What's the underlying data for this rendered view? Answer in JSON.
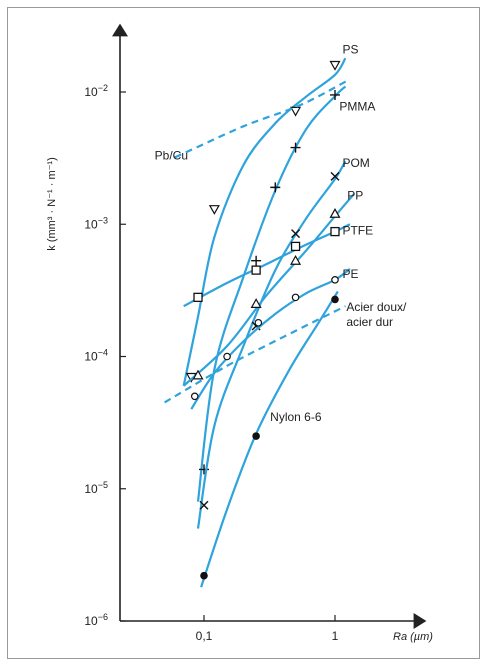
{
  "chart_data": {
    "type": "line",
    "xscale": "log",
    "yscale": "log",
    "xlim": [
      0.03,
      2.2
    ],
    "ylim": [
      1e-06,
      0.04
    ],
    "grid": false,
    "ylabel": "k (mm³ · N⁻¹ · m⁻¹)",
    "xlabel": "Ra (µm)",
    "y_ticks": [
      {
        "value": 1e-06,
        "base": "10",
        "exp": "−6"
      },
      {
        "value": 1e-05,
        "base": "10",
        "exp": "−5"
      },
      {
        "value": 0.0001,
        "base": "10",
        "exp": "−4"
      },
      {
        "value": 0.001,
        "base": "10",
        "exp": "−3"
      },
      {
        "value": 0.01,
        "base": "10",
        "exp": "−2"
      }
    ],
    "x_ticks": [
      {
        "value": 0.1,
        "label": "0,1"
      },
      {
        "value": 1,
        "label": "1"
      }
    ],
    "color": "#2ea3dc",
    "series": [
      {
        "name": "PS",
        "marker": "triangle-down",
        "dashed": false,
        "points": [
          [
            0.08,
            7e-05
          ],
          [
            0.12,
            0.0013
          ],
          [
            0.5,
            0.0072
          ],
          [
            1.0,
            0.016
          ]
        ],
        "curve": [
          [
            0.07,
            6e-05
          ],
          [
            0.09,
            0.0002
          ],
          [
            0.12,
            0.0008
          ],
          [
            0.2,
            0.0028
          ],
          [
            0.35,
            0.0058
          ],
          [
            0.6,
            0.0092
          ],
          [
            1.0,
            0.0135
          ],
          [
            1.2,
            0.018
          ]
        ],
        "label_at": [
          1.14,
          0.021
        ]
      },
      {
        "name": "PMMA",
        "marker": "plus",
        "dashed": false,
        "points": [
          [
            0.1,
            1.4e-05
          ],
          [
            0.25,
            0.00053
          ],
          [
            0.35,
            0.0019
          ],
          [
            0.5,
            0.0038
          ],
          [
            1.0,
            0.0095
          ]
        ],
        "curve": [
          [
            0.09,
            8e-06
          ],
          [
            0.12,
            8e-05
          ],
          [
            0.2,
            0.0004
          ],
          [
            0.35,
            0.0018
          ],
          [
            0.6,
            0.0052
          ],
          [
            1.0,
            0.0093
          ],
          [
            1.2,
            0.011
          ]
        ],
        "label_at": [
          1.08,
          0.0078
        ]
      },
      {
        "name": "POM",
        "marker": "x",
        "dashed": false,
        "points": [
          [
            0.1,
            7.5e-06
          ],
          [
            0.25,
            0.00017
          ],
          [
            0.5,
            0.00085
          ],
          [
            1.0,
            0.0023
          ]
        ],
        "curve": [
          [
            0.09,
            5e-06
          ],
          [
            0.12,
            3e-05
          ],
          [
            0.2,
            0.00012
          ],
          [
            0.35,
            0.00045
          ],
          [
            0.6,
            0.0011
          ],
          [
            1.0,
            0.0022
          ],
          [
            1.2,
            0.003
          ]
        ],
        "label_at": [
          1.14,
          0.0029
        ]
      },
      {
        "name": "PP",
        "marker": "triangle-up",
        "dashed": false,
        "points": [
          [
            0.09,
            7.2e-05
          ],
          [
            0.25,
            0.00025
          ],
          [
            0.5,
            0.00053
          ],
          [
            1.0,
            0.0012
          ]
        ],
        "curve": [
          [
            0.07,
            6e-05
          ],
          [
            0.15,
            0.00012
          ],
          [
            0.3,
            0.00029
          ],
          [
            0.6,
            0.00063
          ],
          [
            1.0,
            0.00115
          ],
          [
            1.4,
            0.0017
          ]
        ],
        "label_at": [
          1.24,
          0.00165
        ]
      },
      {
        "name": "PTFE",
        "marker": "square",
        "dashed": false,
        "points": [
          [
            0.09,
            0.00028
          ],
          [
            0.25,
            0.00045
          ],
          [
            0.5,
            0.00068
          ],
          [
            1.0,
            0.00088
          ]
        ],
        "curve": [
          [
            0.07,
            0.00024
          ],
          [
            0.15,
            0.00036
          ],
          [
            0.3,
            0.0005
          ],
          [
            0.6,
            0.0007
          ],
          [
            1.0,
            0.00088
          ],
          [
            1.3,
            0.001
          ]
        ],
        "label_at": [
          1.14,
          0.0009
        ]
      },
      {
        "name": "PE",
        "marker": "circle",
        "dashed": false,
        "points": [
          [
            0.085,
            5e-05
          ],
          [
            0.15,
            0.0001
          ],
          [
            0.26,
            0.00018
          ],
          [
            0.5,
            0.00028
          ],
          [
            1.0,
            0.00038
          ]
        ],
        "curve": [
          [
            0.08,
            4e-05
          ],
          [
            0.12,
            7.5e-05
          ],
          [
            0.2,
            0.00013
          ],
          [
            0.35,
            0.00021
          ],
          [
            0.6,
            0.0003
          ],
          [
            1.0,
            0.00038
          ],
          [
            1.3,
            0.00046
          ]
        ],
        "label_at": [
          1.14,
          0.00042
        ]
      },
      {
        "name": "Nylon 6-6",
        "marker": "dot",
        "dashed": false,
        "points": [
          [
            0.1,
            2.2e-06
          ],
          [
            0.25,
            2.5e-05
          ],
          [
            1.0,
            0.00027
          ]
        ],
        "curve": [
          [
            0.095,
            1.8e-06
          ],
          [
            0.15,
            7e-06
          ],
          [
            0.25,
            2.6e-05
          ],
          [
            0.45,
            8e-05
          ],
          [
            0.75,
            0.00018
          ],
          [
            1.05,
            0.00031
          ]
        ],
        "label_at": [
          0.32,
          3.5e-05
        ]
      },
      {
        "name": "Pb/Cu",
        "marker": "none",
        "dashed": true,
        "points": [],
        "curve": [
          [
            0.06,
            0.0032
          ],
          [
            0.2,
            0.0055
          ],
          [
            0.55,
            0.008
          ],
          [
            1.3,
            0.0125
          ]
        ],
        "label_at": [
          0.042,
          0.0033
        ]
      },
      {
        "name": "Acier doux/\nacier dur",
        "label_lines": [
          "Acier doux/",
          "acier dur"
        ],
        "marker": "none",
        "dashed": true,
        "points": [],
        "curve": [
          [
            0.05,
            4.5e-05
          ],
          [
            0.15,
            8.5e-05
          ],
          [
            0.4,
            0.00014
          ],
          [
            1.2,
            0.00024
          ]
        ],
        "label_at": [
          1.22,
          0.00022
        ]
      }
    ]
  }
}
